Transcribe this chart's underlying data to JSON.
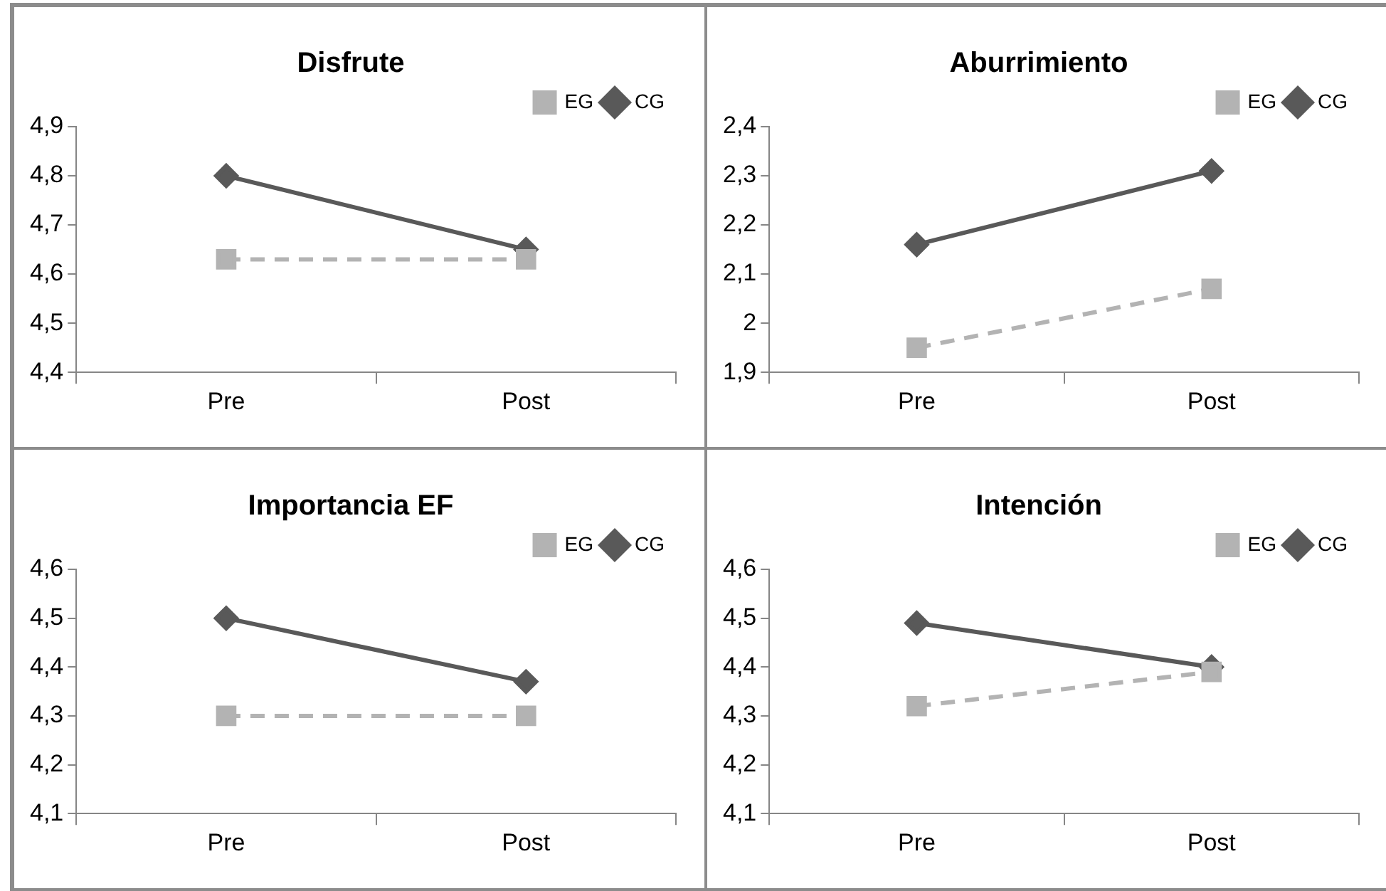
{
  "chart_data": [
    {
      "type": "line",
      "title": "Disfrute",
      "categories": [
        "Pre",
        "Post"
      ],
      "legend": "top right",
      "ylim": [
        4.4,
        4.9
      ],
      "yticks": [
        {
          "value": 4.4,
          "label": "4,4"
        },
        {
          "value": 4.5,
          "label": "4,5"
        },
        {
          "value": 4.6,
          "label": "4,6"
        },
        {
          "value": 4.7,
          "label": "4,7"
        },
        {
          "value": 4.8,
          "label": "4,8"
        },
        {
          "value": 4.9,
          "label": "4,9"
        }
      ],
      "series": [
        {
          "name": "CG",
          "color": "#595959",
          "marker": "diamond",
          "line_style": "solid",
          "values": [
            4.8,
            4.65
          ]
        },
        {
          "name": "EG",
          "color": "#b3b3b3",
          "marker": "square",
          "line_style": "dashed",
          "values": [
            4.63,
            4.63
          ]
        }
      ]
    },
    {
      "type": "line",
      "title": "Aburrimiento",
      "categories": [
        "Pre",
        "Post"
      ],
      "legend": "top right",
      "ylim": [
        1.9,
        2.4
      ],
      "yticks": [
        {
          "value": 1.9,
          "label": "1,9"
        },
        2,
        {
          "value": 2.1,
          "label": "2,1"
        },
        {
          "value": 2.2,
          "label": "2,2"
        },
        {
          "value": 2.3,
          "label": "2,3"
        },
        {
          "value": 2.4,
          "label": "2,4"
        }
      ],
      "series": [
        {
          "name": "CG",
          "color": "#595959",
          "marker": "diamond",
          "line_style": "solid",
          "values": [
            2.16,
            2.31
          ]
        },
        {
          "name": "EG",
          "color": "#b3b3b3",
          "marker": "square",
          "line_style": "dashed",
          "values": [
            1.95,
            2.07
          ]
        }
      ]
    },
    {
      "type": "line",
      "title": "Importancia EF",
      "categories": [
        "Pre",
        "Post"
      ],
      "legend": "top right",
      "ylim": [
        4.1,
        4.6
      ],
      "yticks": [
        {
          "value": 4.1,
          "label": "4,1"
        },
        {
          "value": 4.2,
          "label": "4,2"
        },
        {
          "value": 4.3,
          "label": "4,3"
        },
        {
          "value": 4.4,
          "label": "4,4"
        },
        {
          "value": 4.5,
          "label": "4,5"
        },
        {
          "value": 4.6,
          "label": "4,6"
        }
      ],
      "series": [
        {
          "name": "CG",
          "color": "#595959",
          "marker": "diamond",
          "line_style": "solid",
          "values": [
            4.5,
            4.37
          ]
        },
        {
          "name": "EG",
          "color": "#b3b3b3",
          "marker": "square",
          "line_style": "dashed",
          "values": [
            4.3,
            4.3
          ]
        }
      ]
    },
    {
      "type": "line",
      "title": "Intención",
      "categories": [
        "Pre",
        "Post"
      ],
      "legend": "top right",
      "ylim": [
        4.1,
        4.6
      ],
      "yticks": [
        {
          "value": 4.1,
          "label": "4,1"
        },
        {
          "value": 4.2,
          "label": "4,2"
        },
        {
          "value": 4.3,
          "label": "4,3"
        },
        {
          "value": 4.4,
          "label": "4,4"
        },
        {
          "value": 4.5,
          "label": "4,5"
        },
        {
          "value": 4.6,
          "label": "4,6"
        }
      ],
      "series": [
        {
          "name": "CG",
          "color": "#595959",
          "marker": "diamond",
          "line_style": "solid",
          "values": [
            4.49,
            4.4
          ]
        },
        {
          "name": "EG",
          "color": "#b3b3b3",
          "marker": "square",
          "line_style": "dashed",
          "values": [
            4.32,
            4.39
          ]
        }
      ]
    }
  ]
}
